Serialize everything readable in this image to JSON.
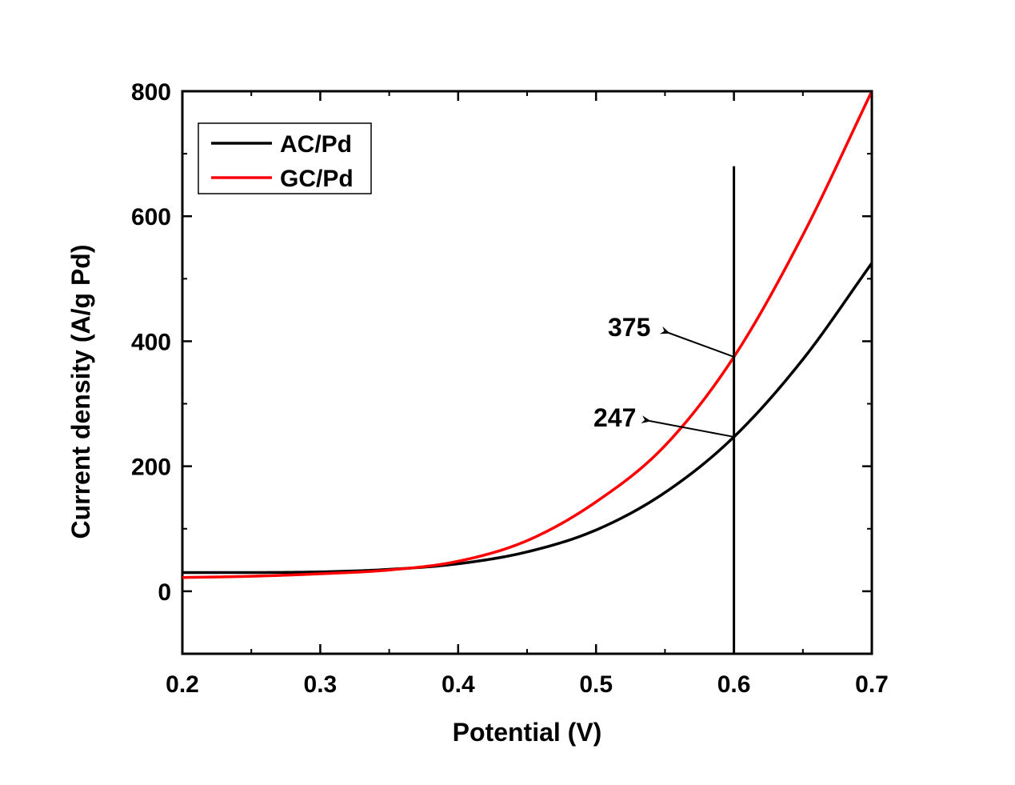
{
  "chart_data": {
    "type": "line",
    "title": "",
    "xlabel": "Potential (V)",
    "ylabel": "Current density (A/g Pd)",
    "xlim": [
      0.2,
      0.7
    ],
    "ylim": [
      -100,
      800
    ],
    "xticks": [
      0.2,
      0.3,
      0.4,
      0.5,
      0.6,
      0.7
    ],
    "xtick_labels": [
      "0.2",
      "0.3",
      "0.4",
      "0.5",
      "0.6",
      "0.7"
    ],
    "yticks": [
      0,
      200,
      400,
      600,
      800
    ],
    "ytick_labels": [
      "0",
      "200",
      "400",
      "600",
      "800"
    ],
    "grid": false,
    "legend_position": "top-left",
    "series": [
      {
        "name": "AC/Pd",
        "color": "#000000",
        "x": [
          0.2,
          0.25,
          0.3,
          0.35,
          0.4,
          0.45,
          0.5,
          0.55,
          0.6,
          0.65,
          0.7
        ],
        "y": [
          30,
          30,
          31,
          35,
          44,
          63,
          98,
          158,
          247,
          371,
          525
        ]
      },
      {
        "name": "GC/Pd",
        "color": "#ff0000",
        "x": [
          0.2,
          0.25,
          0.3,
          0.35,
          0.4,
          0.45,
          0.5,
          0.55,
          0.6,
          0.65,
          0.7
        ],
        "y": [
          22,
          24,
          28,
          34,
          48,
          81,
          143,
          233,
          375,
          570,
          800
        ]
      }
    ],
    "reference_line": {
      "x": 0.6,
      "y_top": 680
    },
    "annotations": [
      {
        "text": "375",
        "x": 0.6,
        "y": 375
      },
      {
        "text": "247",
        "x": 0.6,
        "y": 247
      }
    ]
  }
}
